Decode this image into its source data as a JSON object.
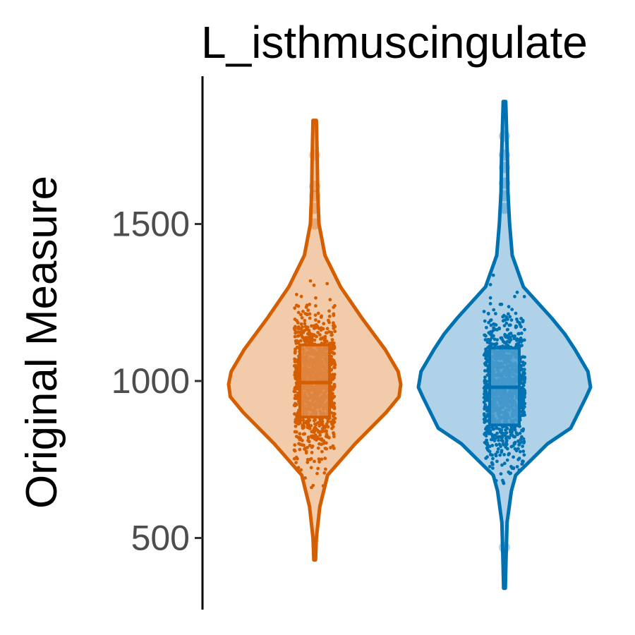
{
  "chart_data": {
    "type": "violin",
    "title": "L_isthmuscingulate",
    "xlabel": "",
    "ylabel": "Original Measure",
    "ylim": [
      260,
      1960
    ],
    "y_ticks": [
      500,
      1000,
      1500
    ],
    "y_tick_labels": [
      "500",
      "1000",
      "1500"
    ],
    "legend": "none",
    "grid": false,
    "series": [
      {
        "color": "#d55e00",
        "fill": "#f2cbab",
        "box_fill": "#e08b4a",
        "min": 430,
        "max": 1830,
        "q1": 885,
        "median": 995,
        "q3": 1115,
        "outliers": [
          1500,
          1550,
          1590,
          1620,
          1720
        ],
        "density": [
          [
            430,
            0.01
          ],
          [
            500,
            0.02
          ],
          [
            600,
            0.06
          ],
          [
            700,
            0.15
          ],
          [
            800,
            0.47
          ],
          [
            900,
            0.83
          ],
          [
            950,
            0.98
          ],
          [
            990,
            1.0
          ],
          [
            1030,
            0.97
          ],
          [
            1100,
            0.82
          ],
          [
            1200,
            0.55
          ],
          [
            1300,
            0.3
          ],
          [
            1400,
            0.12
          ],
          [
            1500,
            0.05
          ],
          [
            1600,
            0.035
          ],
          [
            1700,
            0.03
          ],
          [
            1830,
            0.02
          ]
        ]
      },
      {
        "color": "#0072b2",
        "fill": "#afd2e8",
        "box_fill": "#4d9fcf",
        "min": 340,
        "max": 1890,
        "q1": 860,
        "median": 980,
        "q3": 1105,
        "outliers": [
          470,
          1550,
          1590,
          1630,
          1680,
          1720,
          1780
        ],
        "density": [
          [
            340,
            0.01
          ],
          [
            450,
            0.02
          ],
          [
            550,
            0.03
          ],
          [
            650,
            0.08
          ],
          [
            700,
            0.13
          ],
          [
            800,
            0.5
          ],
          [
            850,
            0.77
          ],
          [
            950,
            0.95
          ],
          [
            980,
            1.0
          ],
          [
            1030,
            0.97
          ],
          [
            1100,
            0.82
          ],
          [
            1150,
            0.7
          ],
          [
            1200,
            0.55
          ],
          [
            1300,
            0.22
          ],
          [
            1400,
            0.09
          ],
          [
            1500,
            0.06
          ],
          [
            1600,
            0.04
          ],
          [
            1700,
            0.035
          ],
          [
            1800,
            0.025
          ],
          [
            1890,
            0.015
          ]
        ]
      }
    ]
  }
}
